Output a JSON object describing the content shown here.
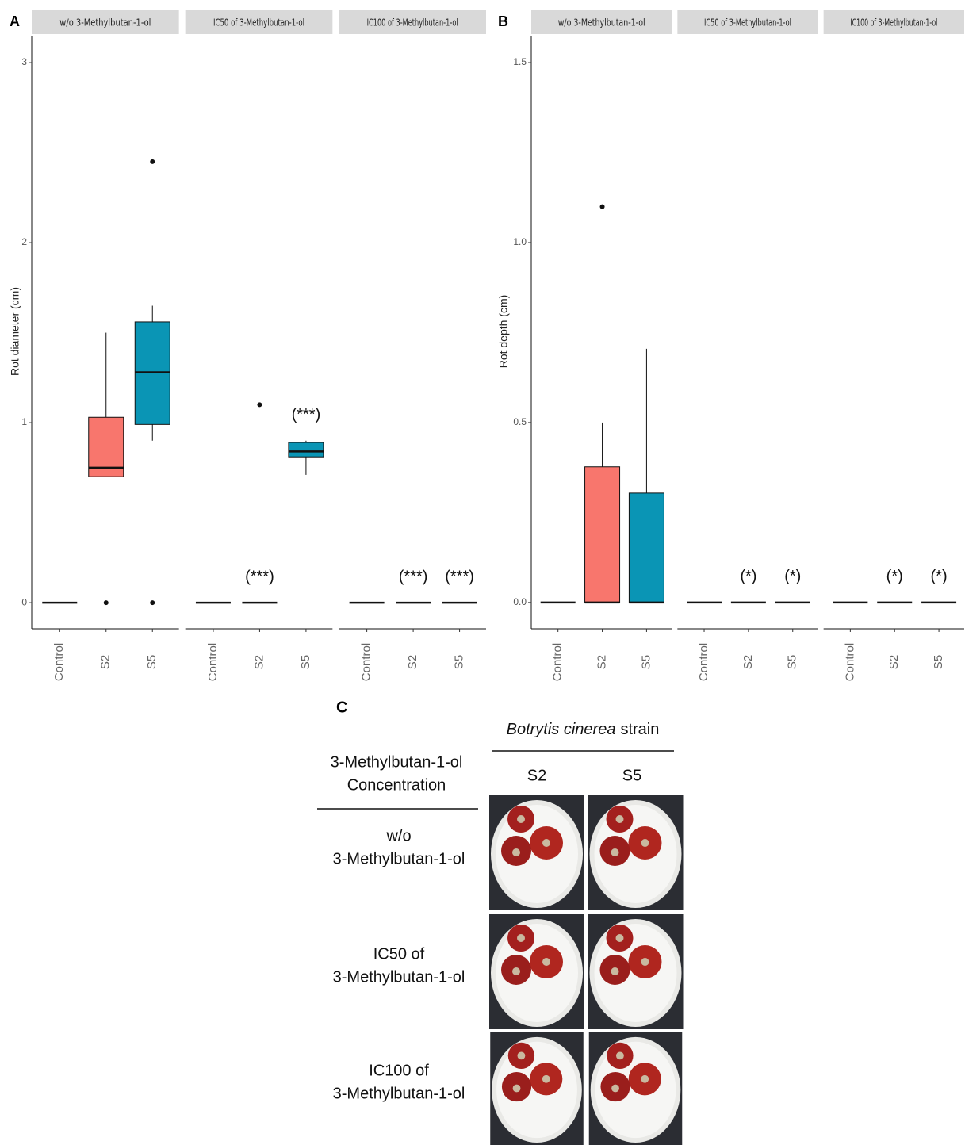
{
  "chart_data": [
    {
      "type": "box",
      "label": "A",
      "ylabel": "Rot diameter (cm)",
      "ylim": [
        -0.145,
        3.15
      ],
      "yticks": [
        0,
        1,
        2,
        3
      ],
      "categories": [
        "Control",
        "S2",
        "S5"
      ],
      "colors": [
        null,
        "#F8766D",
        "#0A95B5"
      ],
      "facets": [
        {
          "title": "w/o 3-Methylbutan-1-ol",
          "boxes": [
            {
              "min": 0,
              "q1": 0,
              "median": 0,
              "q3": 0,
              "max": 0,
              "outliers": []
            },
            {
              "min": 0.7,
              "q1": 0.7,
              "median": 0.75,
              "q3": 1.03,
              "max": 1.5,
              "outliers": [
                0
              ]
            },
            {
              "min": 0.9,
              "q1": 0.99,
              "median": 1.28,
              "q3": 1.56,
              "max": 1.65,
              "outliers": [
                2.45,
                0
              ]
            }
          ],
          "annotations": [
            null,
            null,
            null
          ]
        },
        {
          "title": "IC50 of 3-Methylbutan-1-ol",
          "boxes": [
            {
              "min": 0,
              "q1": 0,
              "median": 0,
              "q3": 0,
              "max": 0,
              "outliers": []
            },
            {
              "min": 0,
              "q1": 0,
              "median": 0,
              "q3": 0,
              "max": 0,
              "outliers": [
                1.1
              ]
            },
            {
              "min": 0.71,
              "q1": 0.81,
              "median": 0.84,
              "q3": 0.89,
              "max": 0.9,
              "outliers": []
            }
          ],
          "annotations": [
            null,
            "(***)",
            "(***)"
          ]
        },
        {
          "title": "IC100 of 3-Methylbutan-1-ol",
          "boxes": [
            {
              "min": 0,
              "q1": 0,
              "median": 0,
              "q3": 0,
              "max": 0,
              "outliers": []
            },
            {
              "min": 0,
              "q1": 0,
              "median": 0,
              "q3": 0,
              "max": 0,
              "outliers": []
            },
            {
              "min": 0,
              "q1": 0,
              "median": 0,
              "q3": 0,
              "max": 0,
              "outliers": []
            }
          ],
          "annotations": [
            null,
            "(***)",
            "(***)"
          ]
        }
      ]
    },
    {
      "type": "box",
      "label": "B",
      "ylabel": "Rot depth (cm)",
      "ylim": [
        -0.073,
        1.575
      ],
      "yticks": [
        {
          "value": 0,
          "label": "0.0"
        },
        {
          "value": 0.5,
          "label": "0.5"
        },
        {
          "value": 1,
          "label": "1.0"
        },
        {
          "value": 1.5,
          "label": "1.5"
        }
      ],
      "categories": [
        "Control",
        "S2",
        "S5"
      ],
      "colors": [
        null,
        "#F8766D",
        "#0A95B5"
      ],
      "facets": [
        {
          "title": "w/o 3-Methylbutan-1-ol",
          "boxes": [
            {
              "min": 0,
              "q1": 0,
              "median": 0,
              "q3": 0,
              "max": 0,
              "outliers": []
            },
            {
              "min": 0,
              "q1": 0,
              "median": 0,
              "q3": 0.377,
              "max": 0.5,
              "outliers": [
                1.1
              ]
            },
            {
              "min": 0,
              "q1": 0,
              "median": 0,
              "q3": 0.304,
              "max": 0.705,
              "outliers": []
            }
          ],
          "annotations": [
            null,
            null,
            null
          ]
        },
        {
          "title": "IC50 of 3-Methylbutan-1-ol",
          "boxes": [
            {
              "min": 0,
              "q1": 0,
              "median": 0,
              "q3": 0,
              "max": 0,
              "outliers": []
            },
            {
              "min": 0,
              "q1": 0,
              "median": 0,
              "q3": 0,
              "max": 0,
              "outliers": []
            },
            {
              "min": 0,
              "q1": 0,
              "median": 0,
              "q3": 0,
              "max": 0,
              "outliers": []
            }
          ],
          "annotations": [
            null,
            "(*)",
            "(*)"
          ]
        },
        {
          "title": "IC100 of 3-Methylbutan-1-ol",
          "boxes": [
            {
              "min": 0,
              "q1": 0,
              "median": 0,
              "q3": 0,
              "max": 0,
              "outliers": []
            },
            {
              "min": 0,
              "q1": 0,
              "median": 0,
              "q3": 0,
              "max": 0,
              "outliers": []
            },
            {
              "min": 0,
              "q1": 0,
              "median": 0,
              "q3": 0,
              "max": 0,
              "outliers": []
            }
          ],
          "annotations": [
            null,
            "(*)",
            "(*)"
          ]
        }
      ]
    }
  ],
  "figure_c": {
    "label": "C",
    "strain_title": [
      "Botrytis cinerea",
      "strain"
    ],
    "row_header": [
      "3-Methylbutan-1-ol",
      "Concentration"
    ],
    "columns": [
      "S2",
      "S5"
    ],
    "rows": [
      [
        "w/o",
        "3-Methylbutan-1-ol"
      ],
      [
        "IC50 of",
        "3-Methylbutan-1-ol"
      ],
      [
        "IC100 of",
        "3-Methylbutan-1-ol"
      ]
    ]
  }
}
